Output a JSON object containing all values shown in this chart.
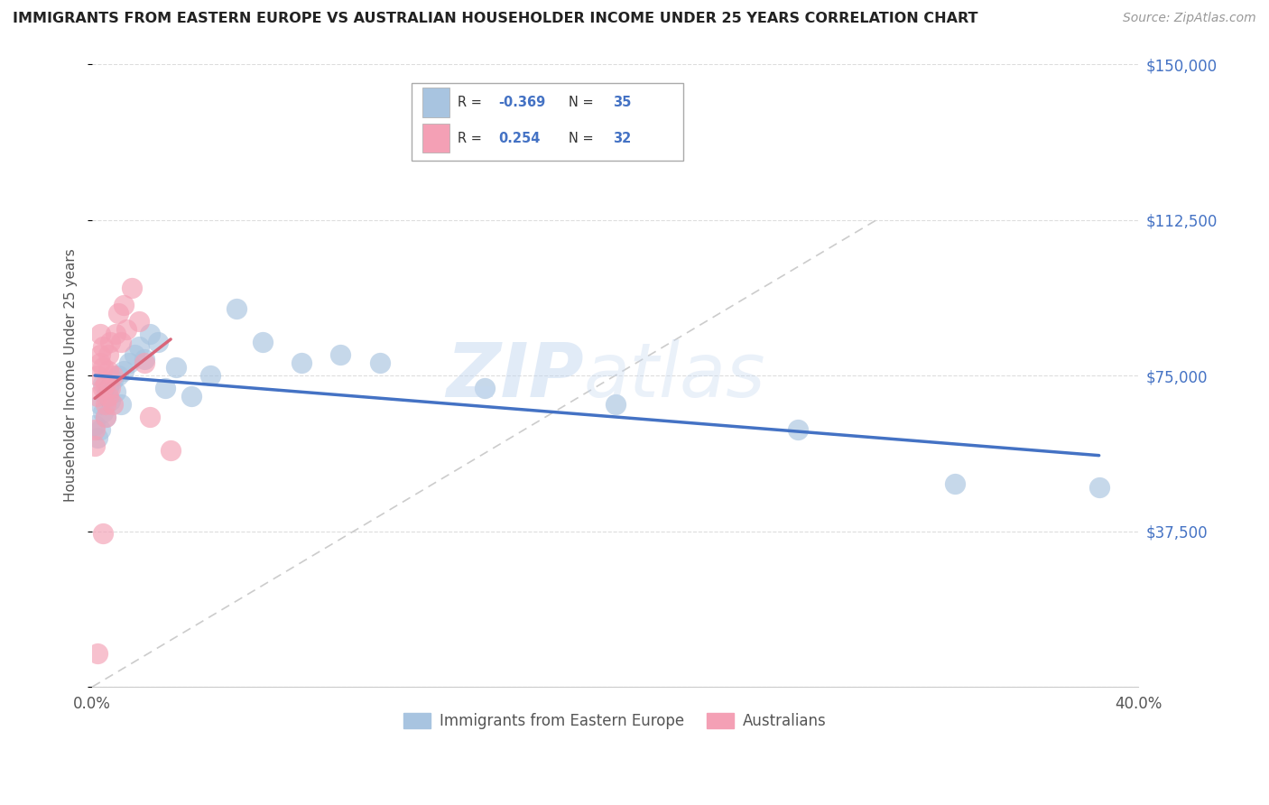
{
  "title": "IMMIGRANTS FROM EASTERN EUROPE VS AUSTRALIAN HOUSEHOLDER INCOME UNDER 25 YEARS CORRELATION CHART",
  "source": "Source: ZipAtlas.com",
  "ylabel": "Householder Income Under 25 years",
  "xlim": [
    0,
    0.4
  ],
  "ylim": [
    0,
    150000
  ],
  "yticks": [
    0,
    37500,
    75000,
    112500,
    150000
  ],
  "ytick_labels": [
    "",
    "$37,500",
    "$75,000",
    "$112,500",
    "$150,000"
  ],
  "xticks": [
    0.0,
    0.08,
    0.16,
    0.24,
    0.32,
    0.4
  ],
  "xtick_labels": [
    "0.0%",
    "",
    "",
    "",
    "",
    "40.0%"
  ],
  "blue_R": -0.369,
  "blue_N": 35,
  "pink_R": 0.254,
  "pink_N": 32,
  "blue_color": "#a8c4e0",
  "pink_color": "#f4a0b5",
  "blue_line_color": "#4472C4",
  "pink_line_color": "#d9667a",
  "dashed_line_color": "#cccccc",
  "watermark_zip": "ZIP",
  "watermark_atlas": "atlas",
  "blue_scatter_x": [
    0.001,
    0.002,
    0.003,
    0.003,
    0.004,
    0.004,
    0.005,
    0.005,
    0.006,
    0.007,
    0.008,
    0.009,
    0.01,
    0.011,
    0.012,
    0.014,
    0.016,
    0.018,
    0.02,
    0.022,
    0.025,
    0.028,
    0.032,
    0.038,
    0.045,
    0.055,
    0.065,
    0.08,
    0.095,
    0.11,
    0.15,
    0.2,
    0.27,
    0.33,
    0.385
  ],
  "blue_scatter_y": [
    63000,
    60000,
    68000,
    62000,
    66000,
    73000,
    70000,
    65000,
    72000,
    69000,
    74000,
    71000,
    75000,
    68000,
    76000,
    78000,
    80000,
    82000,
    79000,
    85000,
    83000,
    72000,
    77000,
    70000,
    75000,
    91000,
    83000,
    78000,
    80000,
    78000,
    72000,
    68000,
    62000,
    49000,
    48000
  ],
  "pink_scatter_x": [
    0.001,
    0.001,
    0.002,
    0.002,
    0.003,
    0.003,
    0.003,
    0.004,
    0.004,
    0.004,
    0.005,
    0.005,
    0.005,
    0.006,
    0.006,
    0.006,
    0.007,
    0.007,
    0.008,
    0.008,
    0.009,
    0.01,
    0.011,
    0.012,
    0.013,
    0.015,
    0.018,
    0.02,
    0.022,
    0.03,
    0.004,
    0.002
  ],
  "pink_scatter_y": [
    62000,
    58000,
    70000,
    75000,
    80000,
    85000,
    78000,
    82000,
    72000,
    77000,
    68000,
    73000,
    65000,
    76000,
    80000,
    70000,
    83000,
    72000,
    75000,
    68000,
    85000,
    90000,
    83000,
    92000,
    86000,
    96000,
    88000,
    78000,
    65000,
    57000,
    37000,
    8000
  ]
}
